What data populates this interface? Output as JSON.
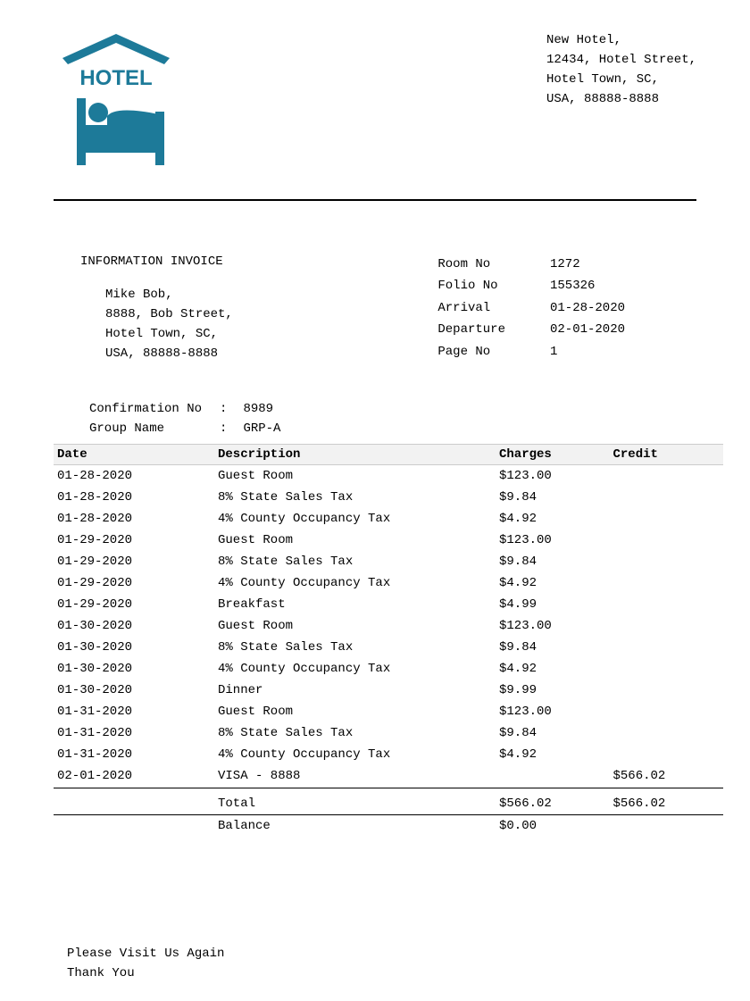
{
  "colors": {
    "brand": "#1d7a99",
    "text": "#000000",
    "background": "#ffffff",
    "table_header_bg": "#f2f2f2",
    "table_border": "#cccccc"
  },
  "logo": {
    "text": "HOTEL"
  },
  "hotel_address": {
    "line1": "New Hotel,",
    "line2": "12434, Hotel Street,",
    "line3": "Hotel Town, SC,",
    "line4": "USA, 88888-8888"
  },
  "invoice_title": "INFORMATION INVOICE",
  "guest": {
    "line1": "Mike Bob,",
    "line2": "8888, Bob Street,",
    "line3": "Hotel Town, SC,",
    "line4": "USA, 88888-8888"
  },
  "stay": {
    "room_no_label": "Room No",
    "room_no": "1272",
    "folio_no_label": "Folio No",
    "folio_no": "155326",
    "arrival_label": "Arrival",
    "arrival": "01-28-2020",
    "departure_label": "Departure",
    "departure": "02-01-2020",
    "page_no_label": "Page No",
    "page_no": "1"
  },
  "extra": {
    "confirmation_label": "Confirmation No",
    "confirmation": "8989",
    "group_label": "Group Name",
    "group": "GRP-A"
  },
  "table": {
    "headers": {
      "date": "Date",
      "description": "Description",
      "charges": "Charges",
      "credit": "Credit"
    },
    "rows": [
      {
        "date": "01-28-2020",
        "description": "Guest Room",
        "charges": "$123.00",
        "credit": ""
      },
      {
        "date": "01-28-2020",
        "description": "8% State Sales Tax",
        "charges": "$9.84",
        "credit": ""
      },
      {
        "date": "01-28-2020",
        "description": "4% County Occupancy Tax",
        "charges": "$4.92",
        "credit": ""
      },
      {
        "date": "01-29-2020",
        "description": "Guest Room",
        "charges": "$123.00",
        "credit": ""
      },
      {
        "date": "01-29-2020",
        "description": "8% State Sales Tax",
        "charges": "$9.84",
        "credit": ""
      },
      {
        "date": "01-29-2020",
        "description": "4% County Occupancy Tax",
        "charges": "$4.92",
        "credit": ""
      },
      {
        "date": "01-29-2020",
        "description": "Breakfast",
        "charges": "$4.99",
        "credit": ""
      },
      {
        "date": "01-30-2020",
        "description": "Guest Room",
        "charges": "$123.00",
        "credit": ""
      },
      {
        "date": "01-30-2020",
        "description": "8% State Sales Tax",
        "charges": "$9.84",
        "credit": ""
      },
      {
        "date": "01-30-2020",
        "description": "4% County Occupancy Tax",
        "charges": "$4.92",
        "credit": ""
      },
      {
        "date": "01-30-2020",
        "description": "Dinner",
        "charges": "$9.99",
        "credit": ""
      },
      {
        "date": "01-31-2020",
        "description": "Guest Room",
        "charges": "$123.00",
        "credit": ""
      },
      {
        "date": "01-31-2020",
        "description": "8% State Sales Tax",
        "charges": "$9.84",
        "credit": ""
      },
      {
        "date": "01-31-2020",
        "description": "4% County Occupancy Tax",
        "charges": "$4.92",
        "credit": ""
      },
      {
        "date": "02-01-2020",
        "description": "VISA - 8888",
        "charges": "",
        "credit": "$566.02"
      }
    ],
    "totals": {
      "total_label": "Total",
      "total_charges": "$566.02",
      "total_credit": "$566.02",
      "balance_label": "Balance",
      "balance_value": "$0.00"
    }
  },
  "footer": {
    "line1": "Please Visit Us Again",
    "line2": "Thank You"
  }
}
